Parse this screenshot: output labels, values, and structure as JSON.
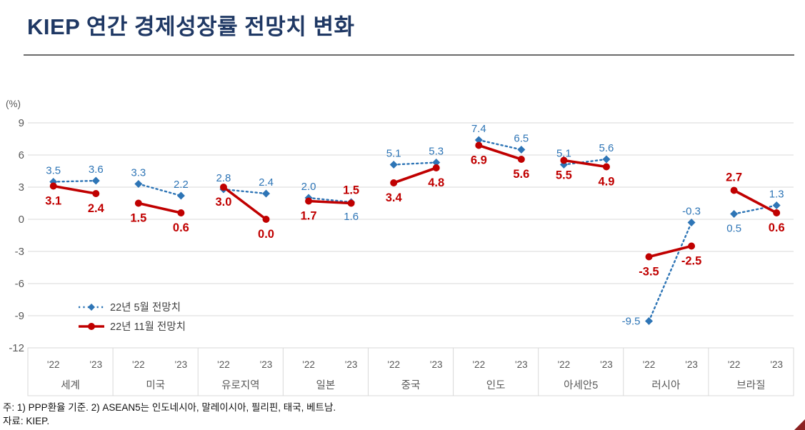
{
  "header": {
    "title": "KIEP 연간 경제성장률 전망치 변화"
  },
  "chart_data": {
    "type": "line",
    "title": "KIEP 연간 경제성장률 전망치 변화",
    "unit_label": "(%)",
    "ylim": [
      -12,
      9
    ],
    "y_ticks": [
      9,
      6,
      3,
      0,
      -3,
      -6,
      -9,
      -12
    ],
    "grid": true,
    "legend_position": "inside-bottom-left",
    "x_year_labels": [
      "'22",
      "'23"
    ],
    "categories": [
      "세계",
      "미국",
      "유로지역",
      "일본",
      "중국",
      "인도",
      "아세안5",
      "러시아",
      "브라질"
    ],
    "series": [
      {
        "name": "22년 5월 전망치",
        "color": "#2E75B6",
        "line_style": "dotted",
        "marker": "diamond",
        "values": [
          [
            3.5,
            3.6
          ],
          [
            3.3,
            2.2
          ],
          [
            2.8,
            2.4
          ],
          [
            2.0,
            1.6
          ],
          [
            5.1,
            5.3
          ],
          [
            7.4,
            6.5
          ],
          [
            5.1,
            5.6
          ],
          [
            -9.5,
            -0.3
          ],
          [
            0.5,
            1.3
          ]
        ],
        "label_pos": [
          [
            "above",
            "above"
          ],
          [
            "above",
            "above"
          ],
          [
            "above",
            "above"
          ],
          [
            "above",
            "below"
          ],
          [
            "above",
            "above"
          ],
          [
            "above",
            "above"
          ],
          [
            "above",
            "above"
          ],
          [
            "left",
            "above"
          ],
          [
            "below",
            "above"
          ]
        ]
      },
      {
        "name": "22년 11월 전망치",
        "color": "#C00000",
        "line_style": "solid",
        "marker": "circle",
        "values": [
          [
            3.1,
            2.4
          ],
          [
            1.5,
            0.6
          ],
          [
            3.0,
            0.0
          ],
          [
            1.7,
            1.5
          ],
          [
            3.4,
            4.8
          ],
          [
            6.9,
            5.6
          ],
          [
            5.5,
            4.9
          ],
          [
            -3.5,
            -2.5
          ],
          [
            2.7,
            0.6
          ]
        ],
        "label_pos": [
          [
            "below",
            "below"
          ],
          [
            "below",
            "below"
          ],
          [
            "below",
            "below"
          ],
          [
            "below",
            "above"
          ],
          [
            "below",
            "below"
          ],
          [
            "below",
            "below"
          ],
          [
            "below",
            "below"
          ],
          [
            "below",
            "below"
          ],
          [
            "above",
            "below"
          ]
        ]
      }
    ]
  },
  "footer": {
    "note": "주: 1) PPP환율 기준. 2) ASEAN5는 인도네시아, 말레이시아, 필리핀, 태국, 베트남.",
    "source": "자료: KIEP."
  },
  "colors": {
    "title": "#1F3864",
    "axis_text": "#595959",
    "gridline": "#D9D9D9",
    "legend_text": "#404040",
    "series_may": "#2E75B6",
    "series_nov": "#C00000",
    "corner_accent": "#8B2222"
  }
}
